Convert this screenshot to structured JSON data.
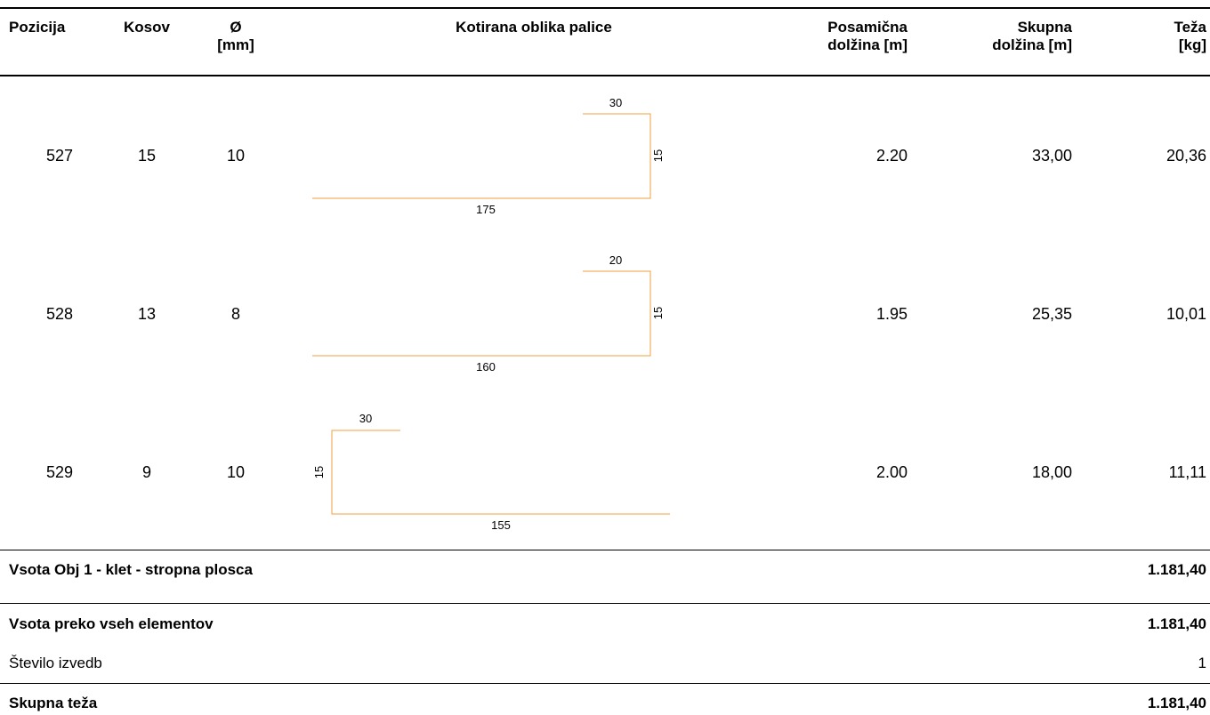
{
  "header": {
    "pozicija": "Pozicija",
    "kosov": "Kosov",
    "premer_1": "Ø",
    "premer_2": "[mm]",
    "oblika": "Kotirana oblika palice",
    "posamicna_1": "Posamična",
    "posamicna_2": "dolžina [m]",
    "skupna_1": "Skupna",
    "skupna_2": "dolžina [m]",
    "teza_1": "Teža",
    "teza_2": "[kg]"
  },
  "rows": [
    {
      "pozicija": "527",
      "kosov": "15",
      "premer": "10",
      "dim_top": "30",
      "dim_side": "15",
      "dim_bottom": "175",
      "posamicna": "2.20",
      "skupna": "33,00",
      "teza": "20,36"
    },
    {
      "pozicija": "528",
      "kosov": "13",
      "premer": "8",
      "dim_top": "20",
      "dim_side": "15",
      "dim_bottom": "160",
      "posamicna": "1.95",
      "skupna": "25,35",
      "teza": "10,01"
    },
    {
      "pozicija": "529",
      "kosov": "9",
      "premer": "10",
      "dim_top": "30",
      "dim_side": "15",
      "dim_bottom": "155",
      "posamicna": "2.00",
      "skupna": "18,00",
      "teza": "11,11"
    }
  ],
  "summary": {
    "element_label": "Vsota Obj 1 - klet - stropna plosca",
    "element_value": "1.181,40",
    "all_label": "Vsota preko vseh elementov",
    "all_value": "1.181,40",
    "count_label": "Število izvedb",
    "count_value": "1",
    "total_label": "Skupna teža",
    "total_value": "1.181,40"
  },
  "colors": {
    "bar_shape": "#f0a040"
  }
}
